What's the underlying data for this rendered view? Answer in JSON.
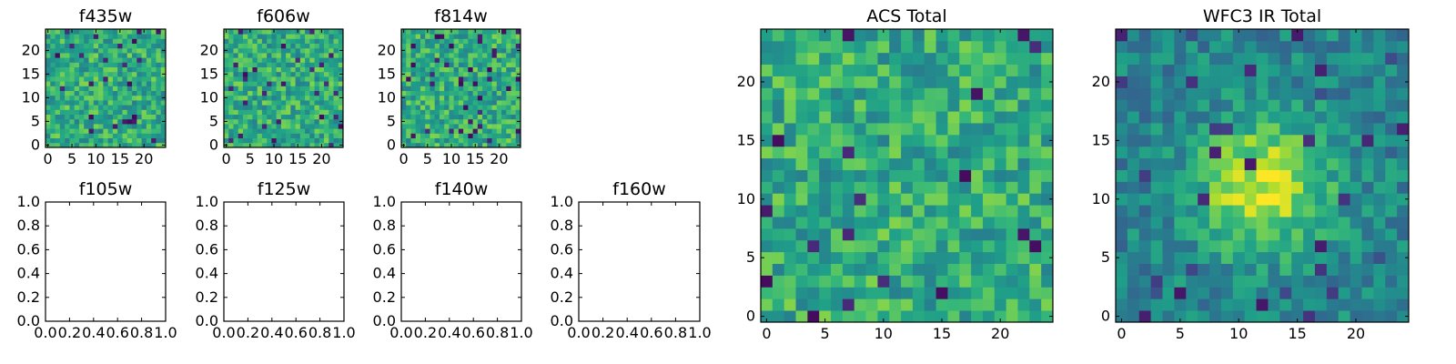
{
  "chart_data": [
    {
      "type": "heatmap",
      "title": "f435w",
      "xticks": [
        "0",
        "5",
        "10",
        "15",
        "20"
      ],
      "yticks": [
        "0",
        "5",
        "10",
        "15",
        "20"
      ],
      "xlim": [
        -0.5,
        24.5
      ],
      "ylim": [
        -0.5,
        24.5
      ],
      "grid_size": 25,
      "colormap": "viridis",
      "empty": false
    },
    {
      "type": "heatmap",
      "title": "f606w",
      "xticks": [
        "0",
        "5",
        "10",
        "15",
        "20"
      ],
      "yticks": [
        "0",
        "5",
        "10",
        "15",
        "20"
      ],
      "xlim": [
        -0.5,
        24.5
      ],
      "ylim": [
        -0.5,
        24.5
      ],
      "grid_size": 25,
      "colormap": "viridis",
      "empty": false
    },
    {
      "type": "heatmap",
      "title": "f814w",
      "xticks": [
        "0",
        "5",
        "10",
        "15",
        "20"
      ],
      "yticks": [
        "0",
        "5",
        "10",
        "15",
        "20"
      ],
      "xlim": [
        -0.5,
        24.5
      ],
      "ylim": [
        -0.5,
        24.5
      ],
      "grid_size": 25,
      "colormap": "viridis",
      "empty": false
    },
    {
      "type": "heatmap",
      "title": "f105w",
      "xticks": [
        "0.0",
        "0.2",
        "0.4",
        "0.6",
        "0.8",
        "1.0"
      ],
      "yticks": [
        "0.0",
        "0.2",
        "0.4",
        "0.6",
        "0.8",
        "1.0"
      ],
      "xlim": [
        0,
        1
      ],
      "ylim": [
        0,
        1
      ],
      "empty": true
    },
    {
      "type": "heatmap",
      "title": "f125w",
      "xticks": [
        "0.0",
        "0.2",
        "0.4",
        "0.6",
        "0.8",
        "1.0"
      ],
      "yticks": [
        "0.0",
        "0.2",
        "0.4",
        "0.6",
        "0.8",
        "1.0"
      ],
      "xlim": [
        0,
        1
      ],
      "ylim": [
        0,
        1
      ],
      "empty": true
    },
    {
      "type": "heatmap",
      "title": "f140w",
      "xticks": [
        "0.0",
        "0.2",
        "0.4",
        "0.6",
        "0.8",
        "1.0"
      ],
      "yticks": [
        "0.0",
        "0.2",
        "0.4",
        "0.6",
        "0.8",
        "1.0"
      ],
      "xlim": [
        0,
        1
      ],
      "ylim": [
        0,
        1
      ],
      "empty": true
    },
    {
      "type": "heatmap",
      "title": "f160w",
      "xticks": [
        "0.0",
        "0.2",
        "0.4",
        "0.6",
        "0.8",
        "1.0"
      ],
      "yticks": [
        "0.0",
        "0.2",
        "0.4",
        "0.6",
        "0.8",
        "1.0"
      ],
      "xlim": [
        0,
        1
      ],
      "ylim": [
        0,
        1
      ],
      "empty": true
    },
    {
      "type": "heatmap",
      "title": "ACS Total",
      "xticks": [
        "0",
        "5",
        "10",
        "15",
        "20"
      ],
      "yticks": [
        "0",
        "5",
        "10",
        "15",
        "20"
      ],
      "xlim": [
        -0.5,
        24.5
      ],
      "ylim": [
        -0.5,
        24.5
      ],
      "grid_size": 25,
      "colormap": "viridis",
      "empty": false
    },
    {
      "type": "heatmap",
      "title": "WFC3 IR Total",
      "xticks": [
        "0",
        "5",
        "10",
        "15",
        "20"
      ],
      "yticks": [
        "0",
        "5",
        "10",
        "15",
        "20"
      ],
      "xlim": [
        -0.5,
        24.5
      ],
      "ylim": [
        -0.5,
        24.5
      ],
      "grid_size": 25,
      "colormap": "viridis",
      "empty": false
    }
  ]
}
